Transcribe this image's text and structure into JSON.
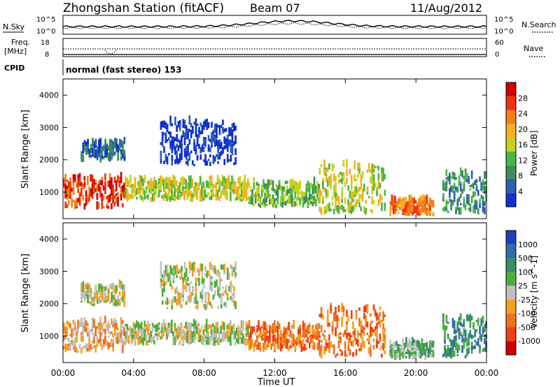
{
  "header": {
    "station": "Zhongshan Station (fitACF)",
    "beam": "Beam 07",
    "date": "11/Aug/2012"
  },
  "summary_panels": {
    "nsky_label": "N.Sky",
    "nsearch_label": "N.Search",
    "freq_label": "Freq.",
    "freq_unit": "[MHz]",
    "nave_label": "Nave",
    "cpid_label": "CPID",
    "cpid_text": "normal (fast stereo) 153",
    "noise_ticks_left": [
      "10^5",
      "10^0"
    ],
    "noise_ticks_right": [
      "10^5",
      "10^0"
    ],
    "freq_ticks": [
      "18",
      "8"
    ],
    "nave_ticks": [
      "60",
      "0"
    ]
  },
  "colors": {
    "power_scale": [
      "#1030d0",
      "#2e5fb0",
      "#3f8c5a",
      "#48b845",
      "#c8d020",
      "#f5b020",
      "#f08018",
      "#f03010",
      "#d00000"
    ],
    "velocity_scale": [
      "#1c3fb8",
      "#2d6fa8",
      "#3a8c6a",
      "#4cae3c",
      "#c0c0c0",
      "#f5a020",
      "#f07020",
      "#f04018",
      "#d00000"
    ]
  },
  "chart_data": [
    {
      "type": "heatmap",
      "panel": "power",
      "ylabel": "Slant Range [km]",
      "yticks": [
        "1000",
        "2000",
        "3000",
        "4000"
      ],
      "ylim": [
        180,
        4500
      ],
      "colorbar_label": "Power [dB]",
      "colorbar_ticks": [
        "4",
        "8",
        "12",
        "16",
        "20",
        "24",
        "28"
      ],
      "regions": [
        {
          "x0": 0.0,
          "x1": 3.5,
          "r0": 450,
          "r1": 1400,
          "level": 7
        },
        {
          "x0": 3.5,
          "x1": 10.5,
          "r0": 700,
          "r1": 1300,
          "level": 4
        },
        {
          "x0": 10.5,
          "x1": 14.5,
          "r0": 500,
          "r1": 1250,
          "level": 3
        },
        {
          "x0": 14.5,
          "x1": 18.2,
          "r0": 300,
          "r1": 1800,
          "level": 4
        },
        {
          "x0": 18.5,
          "x1": 21.0,
          "r0": 250,
          "r1": 700,
          "level": 6
        },
        {
          "x0": 21.5,
          "x1": 24.0,
          "r0": 300,
          "r1": 1500,
          "level": 2
        },
        {
          "x0": 5.5,
          "x1": 9.8,
          "r0": 1800,
          "r1": 3100,
          "level": 0
        },
        {
          "x0": 1.0,
          "x1": 3.5,
          "r0": 1900,
          "r1": 2500,
          "level": 1
        }
      ]
    },
    {
      "type": "heatmap",
      "panel": "velocity",
      "ylabel": "Slant Range [km]",
      "xlabel": "Time UT",
      "xticks": [
        "00:00",
        "04:00",
        "08:00",
        "12:00",
        "16:00",
        "20:00",
        "00:00"
      ],
      "xlim": [
        0,
        24
      ],
      "yticks": [
        "1000",
        "2000",
        "3000",
        "4000"
      ],
      "ylim": [
        180,
        4500
      ],
      "colorbar_label": "Velocity [m s^-1]",
      "colorbar_ticks": [
        "1000",
        "500",
        "100",
        "25",
        "-25",
        "-100",
        "-500",
        "-1000"
      ],
      "regions": [
        {
          "x0": 0.0,
          "x1": 3.5,
          "r0": 450,
          "r1": 1400,
          "level": 5
        },
        {
          "x0": 3.5,
          "x1": 10.5,
          "r0": 700,
          "r1": 1300,
          "level": 4
        },
        {
          "x0": 10.5,
          "x1": 14.5,
          "r0": 500,
          "r1": 1250,
          "level": 6
        },
        {
          "x0": 14.5,
          "x1": 18.2,
          "r0": 300,
          "r1": 1800,
          "level": 6
        },
        {
          "x0": 18.5,
          "x1": 21.0,
          "r0": 250,
          "r1": 700,
          "level": 3
        },
        {
          "x0": 21.5,
          "x1": 24.0,
          "r0": 300,
          "r1": 1500,
          "level": 2
        },
        {
          "x0": 5.5,
          "x1": 9.8,
          "r0": 1800,
          "r1": 3100,
          "level": 4
        },
        {
          "x0": 1.0,
          "x1": 3.5,
          "r0": 1900,
          "r1": 2500,
          "level": 4
        }
      ]
    }
  ]
}
